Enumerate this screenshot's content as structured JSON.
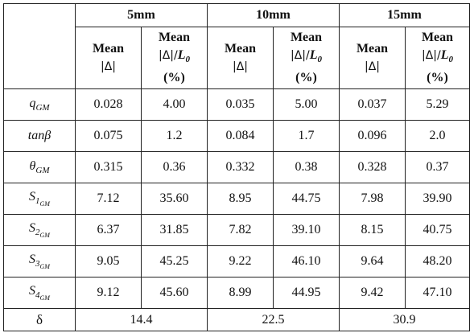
{
  "groups": [
    "5mm",
    "10mm",
    "15mm"
  ],
  "subheaders": {
    "mean": "Mean",
    "abs_delta": "|Δ|",
    "ratio": "|Δ|/",
    "L": "L",
    "L_sub": "0",
    "pct": "(%)"
  },
  "rows": [
    {
      "label": "q",
      "label_sub": "GM",
      "label_sub2": "",
      "v": [
        "0.028",
        "4.00",
        "0.035",
        "5.00",
        "0.037",
        "5.29"
      ]
    },
    {
      "label": "tanβ",
      "label_sub": "",
      "label_sub2": "",
      "v": [
        "0.075",
        "1.2",
        "0.084",
        "1.7",
        "0.096",
        "2.0"
      ]
    },
    {
      "label": "θ",
      "label_sub": "GM",
      "label_sub2": "",
      "v": [
        "0.315",
        "0.36",
        "0.332",
        "0.38",
        "0.328",
        "0.37"
      ]
    },
    {
      "label": "S",
      "label_sub": "1",
      "label_sub2": "GM",
      "v": [
        "7.12",
        "35.60",
        "8.95",
        "44.75",
        "7.98",
        "39.90"
      ]
    },
    {
      "label": "S",
      "label_sub": "2",
      "label_sub2": "GM",
      "v": [
        "6.37",
        "31.85",
        "7.82",
        "39.10",
        "8.15",
        "40.75"
      ]
    },
    {
      "label": "S",
      "label_sub": "3",
      "label_sub2": "GM",
      "v": [
        "9.05",
        "45.25",
        "9.22",
        "46.10",
        "9.64",
        "48.20"
      ]
    },
    {
      "label": "S",
      "label_sub": "4",
      "label_sub2": "GM",
      "v": [
        "9.12",
        "45.60",
        "8.99",
        "44.95",
        "9.42",
        "47.10"
      ]
    }
  ],
  "delta_row": {
    "label": "δ",
    "v": [
      "14.4",
      "22.5",
      "30.9"
    ]
  }
}
